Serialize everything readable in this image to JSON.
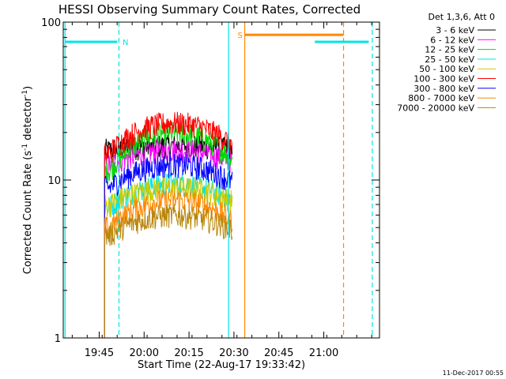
{
  "chart_data": {
    "type": "line",
    "title": "HESSI Observing Summary Count Rates, Corrected",
    "xlabel": "Start Time (22-Aug-17 19:33:42)",
    "ylabel_main": "Corrected Count Rate (s",
    "ylabel_sup1": "-1",
    "ylabel_mid": " detector",
    "ylabel_sup2": "-1",
    "ylabel_end": ")",
    "yscale": "log",
    "ylim": [
      1,
      100
    ],
    "xlim_minutes": [
      19.55,
      21.31
    ],
    "xticks": [
      {
        "t": 19.75,
        "label": "19:45"
      },
      {
        "t": 20.0,
        "label": "20:00"
      },
      {
        "t": 20.25,
        "label": "20:15"
      },
      {
        "t": 20.5,
        "label": "20:30"
      },
      {
        "t": 20.75,
        "label": "20:45"
      },
      {
        "t": 21.0,
        "label": "21:00"
      }
    ],
    "yticks": [
      {
        "v": 1,
        "label": "1"
      },
      {
        "v": 10,
        "label": "10"
      },
      {
        "v": 100,
        "label": "100"
      }
    ],
    "legend_title": "Det 1,3,6, Att 0",
    "series": [
      {
        "name": "3 - 6 keV",
        "color": "#000000",
        "start": 19.78,
        "peak": 16.5,
        "edge": 15.5
      },
      {
        "name": "6 - 12 keV",
        "color": "#ff00ff",
        "start": 19.78,
        "peak": 15.5,
        "edge": 12.5
      },
      {
        "name": "12 - 25 keV",
        "color": "#00dd00",
        "start": 19.78,
        "peak": 20.0,
        "edge": 11.5
      },
      {
        "name": "25 - 50 keV",
        "color": "#00e5e5",
        "start": 19.78,
        "peak": 9.5,
        "edge": 6.8
      },
      {
        "name": "50 - 100 keV",
        "color": "#cccc00",
        "start": 19.78,
        "peak": 9.0,
        "edge": 7.0
      },
      {
        "name": "100 - 300 keV",
        "color": "#ff0000",
        "start": 19.78,
        "peak": 23.0,
        "edge": 15.0
      },
      {
        "name": "300 - 800 keV",
        "color": "#0000ff",
        "start": 19.78,
        "peak": 12.5,
        "edge": 9.0
      },
      {
        "name": "800 - 7000 keV",
        "color": "#ff8800",
        "start": 19.78,
        "peak": 7.5,
        "edge": 5.0
      },
      {
        "name": "7000 - 20000 keV",
        "color": "#b8860b",
        "start": 19.78,
        "peak": 6.0,
        "edge": 4.5
      }
    ],
    "data_end": 20.49,
    "markers": [
      {
        "label": "N",
        "color": "#00e5e5",
        "solid": [
          19.56,
          20.47
        ],
        "dashed": [
          19.86,
          21.27
        ],
        "bar": [
          [
            19.56,
            19.85
          ],
          [
            20.95,
            21.25
          ]
        ],
        "bar_value": 75,
        "label_t": 19.88
      },
      {
        "label": "S",
        "color": "#ff8800",
        "solid": [
          20.56
        ],
        "dashed": [
          21.11
        ],
        "bar": [
          [
            20.56,
            21.11
          ]
        ],
        "bar_value": 83,
        "label_t": 20.52
      }
    ],
    "footer_date": "11-Dec-2017 00:55"
  }
}
